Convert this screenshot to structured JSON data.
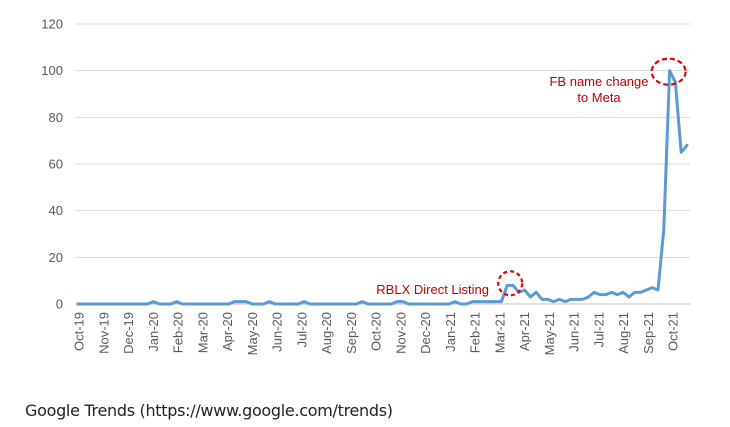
{
  "chart_data": {
    "type": "line",
    "title": "",
    "xlabel": "",
    "ylabel": "",
    "ylim": [
      0,
      120
    ],
    "yticks": [
      0,
      20,
      40,
      60,
      80,
      100,
      120
    ],
    "grid": "horizontal",
    "x_tick_labels": [
      "Oct-19",
      "Nov-19",
      "Dec-19",
      "Jan-20",
      "Feb-20",
      "Mar-20",
      "Apr-20",
      "May-20",
      "Jun-20",
      "Jul-20",
      "Aug-20",
      "Sep-20",
      "Oct-20",
      "Nov-20",
      "Dec-20",
      "Jan-21",
      "Feb-21",
      "Mar-21",
      "Apr-21",
      "May-21",
      "Jun-21",
      "Jul-21",
      "Aug-21",
      "Sep-21",
      "Oct-21"
    ],
    "series": [
      {
        "name": "",
        "color": "#5b9bd5",
        "values": [
          0,
          0,
          0,
          0,
          0,
          0,
          0,
          0,
          0,
          0,
          0,
          0,
          0,
          1,
          0,
          0,
          0,
          1,
          0,
          0,
          0,
          0,
          0,
          0,
          0,
          0,
          0,
          1,
          1,
          1,
          0,
          0,
          0,
          1,
          0,
          0,
          0,
          0,
          0,
          1,
          0,
          0,
          0,
          0,
          0,
          0,
          0,
          0,
          0,
          1,
          0,
          0,
          0,
          0,
          0,
          1,
          1,
          0,
          0,
          0,
          0,
          0,
          0,
          0,
          0,
          1,
          0,
          0,
          1,
          1,
          1,
          1,
          1,
          1,
          8,
          8,
          5,
          6,
          3,
          5,
          2,
          2,
          1,
          2,
          1,
          2,
          2,
          2,
          3,
          5,
          4,
          4,
          5,
          4,
          5,
          3,
          5,
          5,
          6,
          7,
          6,
          32,
          100,
          95,
          65,
          68
        ]
      }
    ],
    "annotations": [
      {
        "lines": [
          "RBLX Direct Listing"
        ],
        "index": 74,
        "value": 8
      },
      {
        "lines": [
          "FB name change",
          "to Meta"
        ],
        "index": 102,
        "value": 100
      }
    ]
  },
  "source": "Google Trends (https://www.google.com/trends)"
}
